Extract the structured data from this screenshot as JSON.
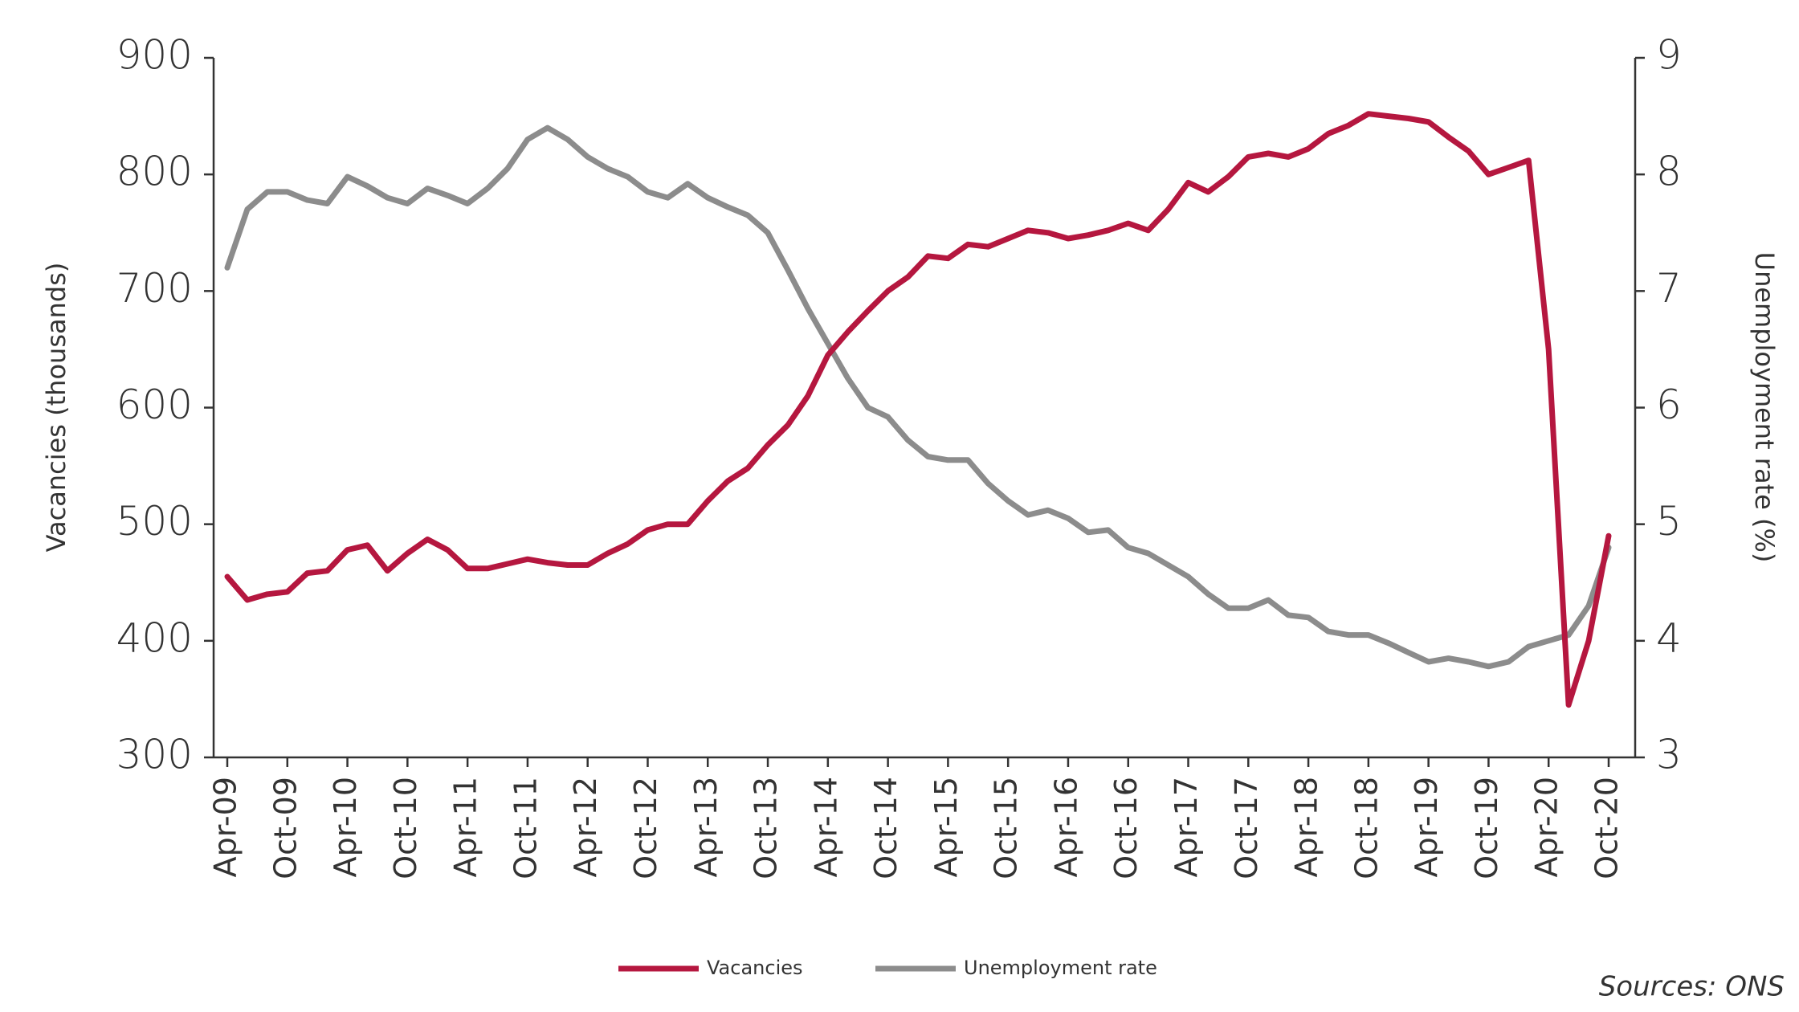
{
  "chart_data": {
    "type": "line",
    "y_label": "Vacancies (thousands)",
    "y2_label": "Unemployment rate (%)",
    "source": "Sources: ONS",
    "legend": "bottom",
    "categories": [
      "Apr-09",
      null,
      null,
      "Oct-09",
      null,
      null,
      "Apr-10",
      null,
      null,
      "Oct-10",
      null,
      null,
      "Apr-11",
      null,
      null,
      "Oct-11",
      null,
      null,
      "Apr-12",
      null,
      null,
      "Oct-12",
      null,
      null,
      "Apr-13",
      null,
      null,
      "Oct-13",
      null,
      null,
      "Apr-14",
      null,
      null,
      "Oct-14",
      null,
      null,
      "Apr-15",
      null,
      null,
      "Oct-15",
      null,
      null,
      "Apr-16",
      null,
      null,
      "Oct-16",
      null,
      null,
      "Apr-17",
      null,
      null,
      "Oct-17",
      null,
      null,
      "Apr-18",
      null,
      null,
      "Oct-18",
      null,
      null,
      "Apr-19",
      null,
      null,
      "Oct-19",
      null,
      null,
      "Apr-20",
      null,
      null,
      "Oct-20"
    ],
    "series": [
      {
        "name": "Vacancies",
        "color": "#b5173f",
        "axis": "y",
        "values": [
          455,
          435,
          440,
          442,
          458,
          460,
          478,
          482,
          460,
          475,
          487,
          478,
          462,
          462,
          466,
          470,
          467,
          465,
          465,
          475,
          483,
          495,
          500,
          500,
          520,
          537,
          548,
          568,
          585,
          610,
          645,
          665,
          683,
          700,
          712,
          730,
          728,
          740,
          738,
          745,
          752,
          750,
          745,
          748,
          752,
          758,
          752,
          770,
          793,
          785,
          798,
          815,
          818,
          815,
          822,
          835,
          842,
          852,
          850,
          848,
          845,
          832,
          820,
          800,
          806,
          812,
          650,
          345,
          400,
          490
        ]
      },
      {
        "name": "Unemployment rate",
        "color": "#8c8c8c",
        "axis": "y2",
        "values": [
          7.2,
          7.7,
          7.85,
          7.85,
          7.78,
          7.75,
          7.98,
          7.9,
          7.8,
          7.75,
          7.88,
          7.82,
          7.75,
          7.88,
          8.05,
          8.3,
          8.4,
          8.3,
          8.15,
          8.05,
          7.98,
          7.85,
          7.8,
          7.92,
          7.8,
          7.72,
          7.65,
          7.5,
          7.18,
          6.85,
          6.55,
          6.25,
          6.0,
          5.92,
          5.72,
          5.58,
          5.55,
          5.55,
          5.35,
          5.2,
          5.08,
          5.12,
          5.05,
          4.93,
          4.95,
          4.8,
          4.75,
          4.65,
          4.55,
          4.4,
          4.28,
          4.28,
          4.35,
          4.22,
          4.2,
          4.08,
          4.05,
          4.05,
          3.98,
          3.9,
          3.82,
          3.85,
          3.82,
          3.78,
          3.82,
          3.95,
          4.0,
          4.05,
          4.3,
          4.8
        ]
      }
    ],
    "ylim": [
      300,
      900
    ],
    "yticks": [
      300,
      400,
      500,
      600,
      700,
      800,
      900
    ],
    "y2lim": [
      3,
      9
    ],
    "y2ticks": [
      3,
      4,
      5,
      6,
      7,
      8,
      9
    ]
  }
}
